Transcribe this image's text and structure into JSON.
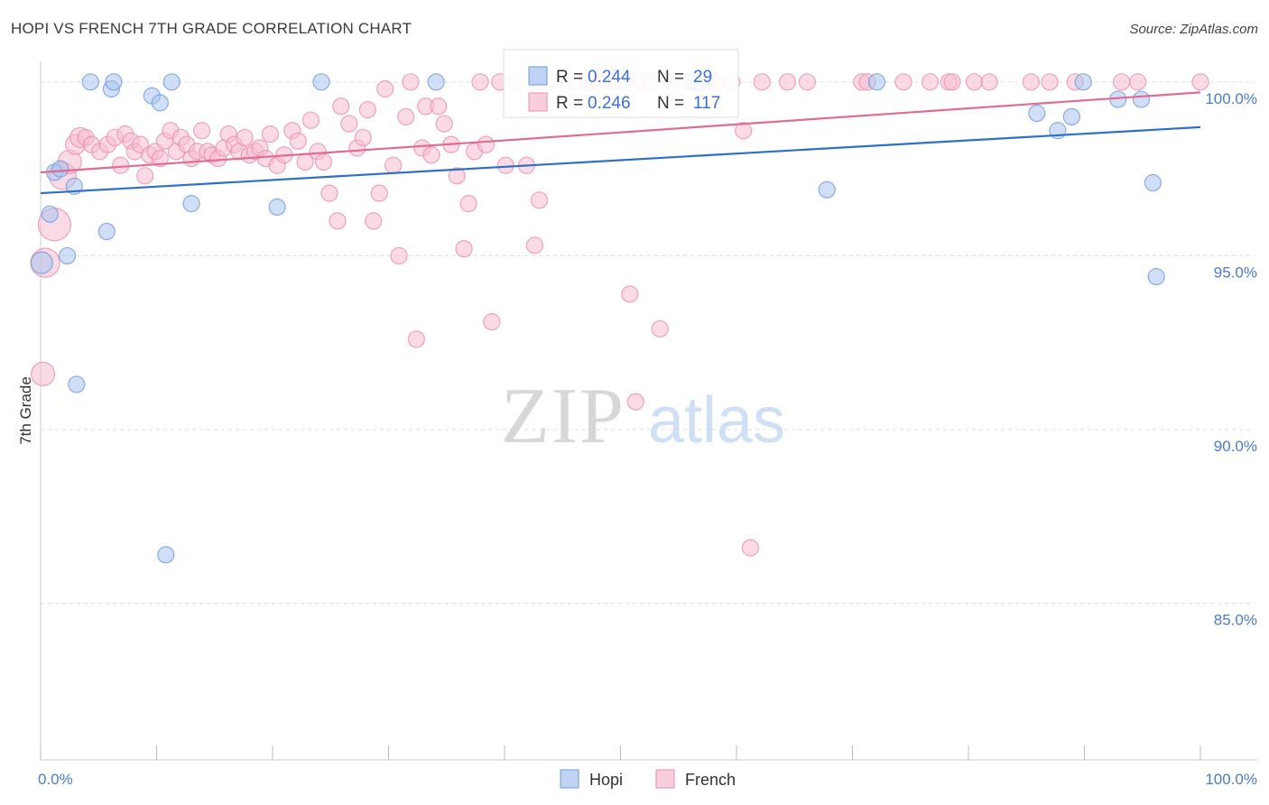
{
  "chart_data": {
    "type": "scatter",
    "title": "HOPI VS FRENCH 7TH GRADE CORRELATION CHART",
    "source": "Source: ZipAtlas.com",
    "ylabel": "7th Grade",
    "xlabel": "",
    "xlim": [
      0,
      100
    ],
    "ylim": [
      80.5,
      100.8
    ],
    "x_tick_labels": [
      {
        "v": 0,
        "label": "0.0%"
      },
      {
        "v": 100,
        "label": "100.0%"
      }
    ],
    "y_ticks": [
      {
        "v": 100,
        "label": "100.0%"
      },
      {
        "v": 95,
        "label": "95.0%"
      },
      {
        "v": 90,
        "label": "90.0%"
      },
      {
        "v": 85,
        "label": "85.0%"
      }
    ],
    "colors": {
      "hopi_fill": "#a9c4ee",
      "hopi_stroke": "#6f9be0",
      "hopi_line": "#2d6fcb",
      "french_fill": "#f6bdd0",
      "french_stroke": "#ea8fae",
      "french_line": "#e06b94"
    },
    "legend": {
      "r_label": "R =",
      "n_label": "N =",
      "entries": [
        {
          "name": "Hopi",
          "r": "0.244",
          "n": "29"
        },
        {
          "name": "French",
          "r": "0.246",
          "n": "117"
        }
      ]
    },
    "series": [
      {
        "name": "Hopi",
        "trend": [
          [
            0,
            96.8
          ],
          [
            100,
            98.7
          ]
        ],
        "points": [
          [
            0.1,
            94.8,
            12
          ],
          [
            0.8,
            96.2,
            9
          ],
          [
            1.2,
            97.4,
            9
          ],
          [
            1.7,
            97.5,
            9
          ],
          [
            2.3,
            95.0,
            9
          ],
          [
            2.9,
            97.0,
            9
          ],
          [
            3.1,
            91.3,
            9
          ],
          [
            4.3,
            100.0,
            9
          ],
          [
            5.7,
            95.7,
            9
          ],
          [
            6.1,
            99.8,
            9
          ],
          [
            6.3,
            100.0,
            9
          ],
          [
            9.6,
            99.6,
            9
          ],
          [
            10.3,
            99.4,
            9
          ],
          [
            11.3,
            100.0,
            9
          ],
          [
            10.8,
            86.4,
            9
          ],
          [
            13.0,
            96.5,
            9
          ],
          [
            20.4,
            96.4,
            9
          ],
          [
            24.2,
            100.0,
            9
          ],
          [
            34.1,
            100.0,
            9
          ],
          [
            56.1,
            100.0,
            9
          ],
          [
            56.5,
            100.0,
            9
          ],
          [
            56.8,
            100.0,
            9
          ],
          [
            67.8,
            96.9,
            9
          ],
          [
            72.1,
            100.0,
            9
          ],
          [
            85.9,
            99.1,
            9
          ],
          [
            87.7,
            98.6,
            9
          ],
          [
            88.9,
            99.0,
            9
          ],
          [
            89.9,
            100.0,
            9
          ],
          [
            92.9,
            99.5,
            9
          ],
          [
            94.9,
            99.5,
            9
          ],
          [
            95.9,
            97.1,
            9
          ],
          [
            96.2,
            94.4,
            9
          ]
        ]
      },
      {
        "name": "French",
        "trend": [
          [
            0,
            97.4
          ],
          [
            100,
            99.7
          ]
        ],
        "points": [
          [
            0.2,
            91.6,
            13
          ],
          [
            0.4,
            94.8,
            16
          ],
          [
            1.2,
            95.9,
            18
          ],
          [
            1.9,
            97.3,
            15
          ],
          [
            2.5,
            97.7,
            13
          ],
          [
            3.0,
            98.2,
            11
          ],
          [
            3.4,
            98.4,
            11
          ],
          [
            3.9,
            98.4,
            9
          ],
          [
            4.4,
            98.2,
            9
          ],
          [
            5.1,
            98.0,
            9
          ],
          [
            5.8,
            98.2,
            9
          ],
          [
            6.4,
            98.4,
            9
          ],
          [
            6.9,
            97.6,
            9
          ],
          [
            7.3,
            98.5,
            9
          ],
          [
            7.8,
            98.3,
            9
          ],
          [
            8.1,
            98.0,
            9
          ],
          [
            8.6,
            98.2,
            9
          ],
          [
            9.0,
            97.3,
            9
          ],
          [
            9.4,
            97.9,
            9
          ],
          [
            9.9,
            98.0,
            9
          ],
          [
            10.3,
            97.8,
            9
          ],
          [
            10.7,
            98.3,
            9
          ],
          [
            11.2,
            98.6,
            9
          ],
          [
            11.7,
            98.0,
            9
          ],
          [
            12.1,
            98.4,
            9
          ],
          [
            12.6,
            98.2,
            9
          ],
          [
            13.0,
            97.8,
            9
          ],
          [
            13.5,
            98.0,
            9
          ],
          [
            13.9,
            98.6,
            9
          ],
          [
            14.4,
            98.0,
            9
          ],
          [
            14.8,
            97.9,
            9
          ],
          [
            15.3,
            97.8,
            9
          ],
          [
            15.8,
            98.1,
            9
          ],
          [
            16.2,
            98.5,
            9
          ],
          [
            16.7,
            98.2,
            9
          ],
          [
            17.1,
            98.0,
            9
          ],
          [
            17.6,
            98.4,
            9
          ],
          [
            18.0,
            97.9,
            9
          ],
          [
            18.5,
            98.0,
            9
          ],
          [
            18.9,
            98.1,
            9
          ],
          [
            19.4,
            97.8,
            9
          ],
          [
            19.8,
            98.5,
            9
          ],
          [
            20.4,
            97.6,
            9
          ],
          [
            21.0,
            97.9,
            9
          ],
          [
            21.7,
            98.6,
            9
          ],
          [
            22.2,
            98.3,
            9
          ],
          [
            22.8,
            97.7,
            9
          ],
          [
            23.3,
            98.9,
            9
          ],
          [
            23.9,
            98.0,
            9
          ],
          [
            24.4,
            97.7,
            9
          ],
          [
            24.9,
            96.8,
            9
          ],
          [
            25.6,
            96.0,
            9
          ],
          [
            25.9,
            99.3,
            9
          ],
          [
            26.6,
            98.8,
            9
          ],
          [
            27.3,
            98.1,
            9
          ],
          [
            27.8,
            98.4,
            9
          ],
          [
            28.2,
            99.2,
            9
          ],
          [
            28.7,
            96.0,
            9
          ],
          [
            29.2,
            96.8,
            9
          ],
          [
            29.7,
            99.8,
            9
          ],
          [
            30.4,
            97.6,
            9
          ],
          [
            30.9,
            95.0,
            9
          ],
          [
            31.5,
            99.0,
            9
          ],
          [
            31.9,
            100.0,
            9
          ],
          [
            32.4,
            92.6,
            9
          ],
          [
            32.9,
            98.1,
            9
          ],
          [
            33.2,
            99.3,
            9
          ],
          [
            33.7,
            97.9,
            9
          ],
          [
            34.3,
            99.3,
            9
          ],
          [
            34.8,
            98.8,
            9
          ],
          [
            35.4,
            98.2,
            9
          ],
          [
            35.9,
            97.3,
            9
          ],
          [
            36.5,
            95.2,
            9
          ],
          [
            36.9,
            96.5,
            9
          ],
          [
            37.4,
            98.0,
            9
          ],
          [
            37.9,
            100.0,
            9
          ],
          [
            38.4,
            98.2,
            9
          ],
          [
            38.9,
            93.1,
            9
          ],
          [
            39.6,
            100.0,
            9
          ],
          [
            40.1,
            97.6,
            9
          ],
          [
            41.0,
            100.0,
            9
          ],
          [
            41.9,
            97.6,
            9
          ],
          [
            42.6,
            95.3,
            9
          ],
          [
            42.8,
            100.0,
            9
          ],
          [
            43.0,
            96.6,
            9
          ],
          [
            43.9,
            100.0,
            9
          ],
          [
            45.2,
            100.0,
            9
          ],
          [
            46.3,
            100.0,
            9
          ],
          [
            47.2,
            100.0,
            9
          ],
          [
            48.1,
            100.0,
            9
          ],
          [
            49.4,
            100.0,
            9
          ],
          [
            50.3,
            100.0,
            9
          ],
          [
            50.8,
            93.9,
            9
          ],
          [
            51.3,
            90.8,
            9
          ],
          [
            51.9,
            100.0,
            9
          ],
          [
            52.6,
            100.0,
            9
          ],
          [
            53.4,
            92.9,
            9
          ],
          [
            54.1,
            100.0,
            9
          ],
          [
            55.6,
            100.0,
            9
          ],
          [
            57.8,
            100.0,
            9
          ],
          [
            58.3,
            100.0,
            9
          ],
          [
            59.6,
            100.0,
            9
          ],
          [
            60.6,
            98.6,
            9
          ],
          [
            61.2,
            86.6,
            9
          ],
          [
            62.2,
            100.0,
            9
          ],
          [
            64.4,
            100.0,
            9
          ],
          [
            66.1,
            100.0,
            9
          ],
          [
            70.8,
            100.0,
            9
          ],
          [
            71.3,
            100.0,
            9
          ],
          [
            74.4,
            100.0,
            9
          ],
          [
            76.7,
            100.0,
            9
          ],
          [
            78.3,
            100.0,
            9
          ],
          [
            78.6,
            100.0,
            9
          ],
          [
            80.5,
            100.0,
            9
          ],
          [
            81.8,
            100.0,
            9
          ],
          [
            85.4,
            100.0,
            9
          ],
          [
            87.0,
            100.0,
            9
          ],
          [
            89.2,
            100.0,
            9
          ],
          [
            93.2,
            100.0,
            9
          ],
          [
            94.6,
            100.0,
            9
          ],
          [
            100.0,
            100.0,
            9
          ]
        ]
      }
    ]
  }
}
